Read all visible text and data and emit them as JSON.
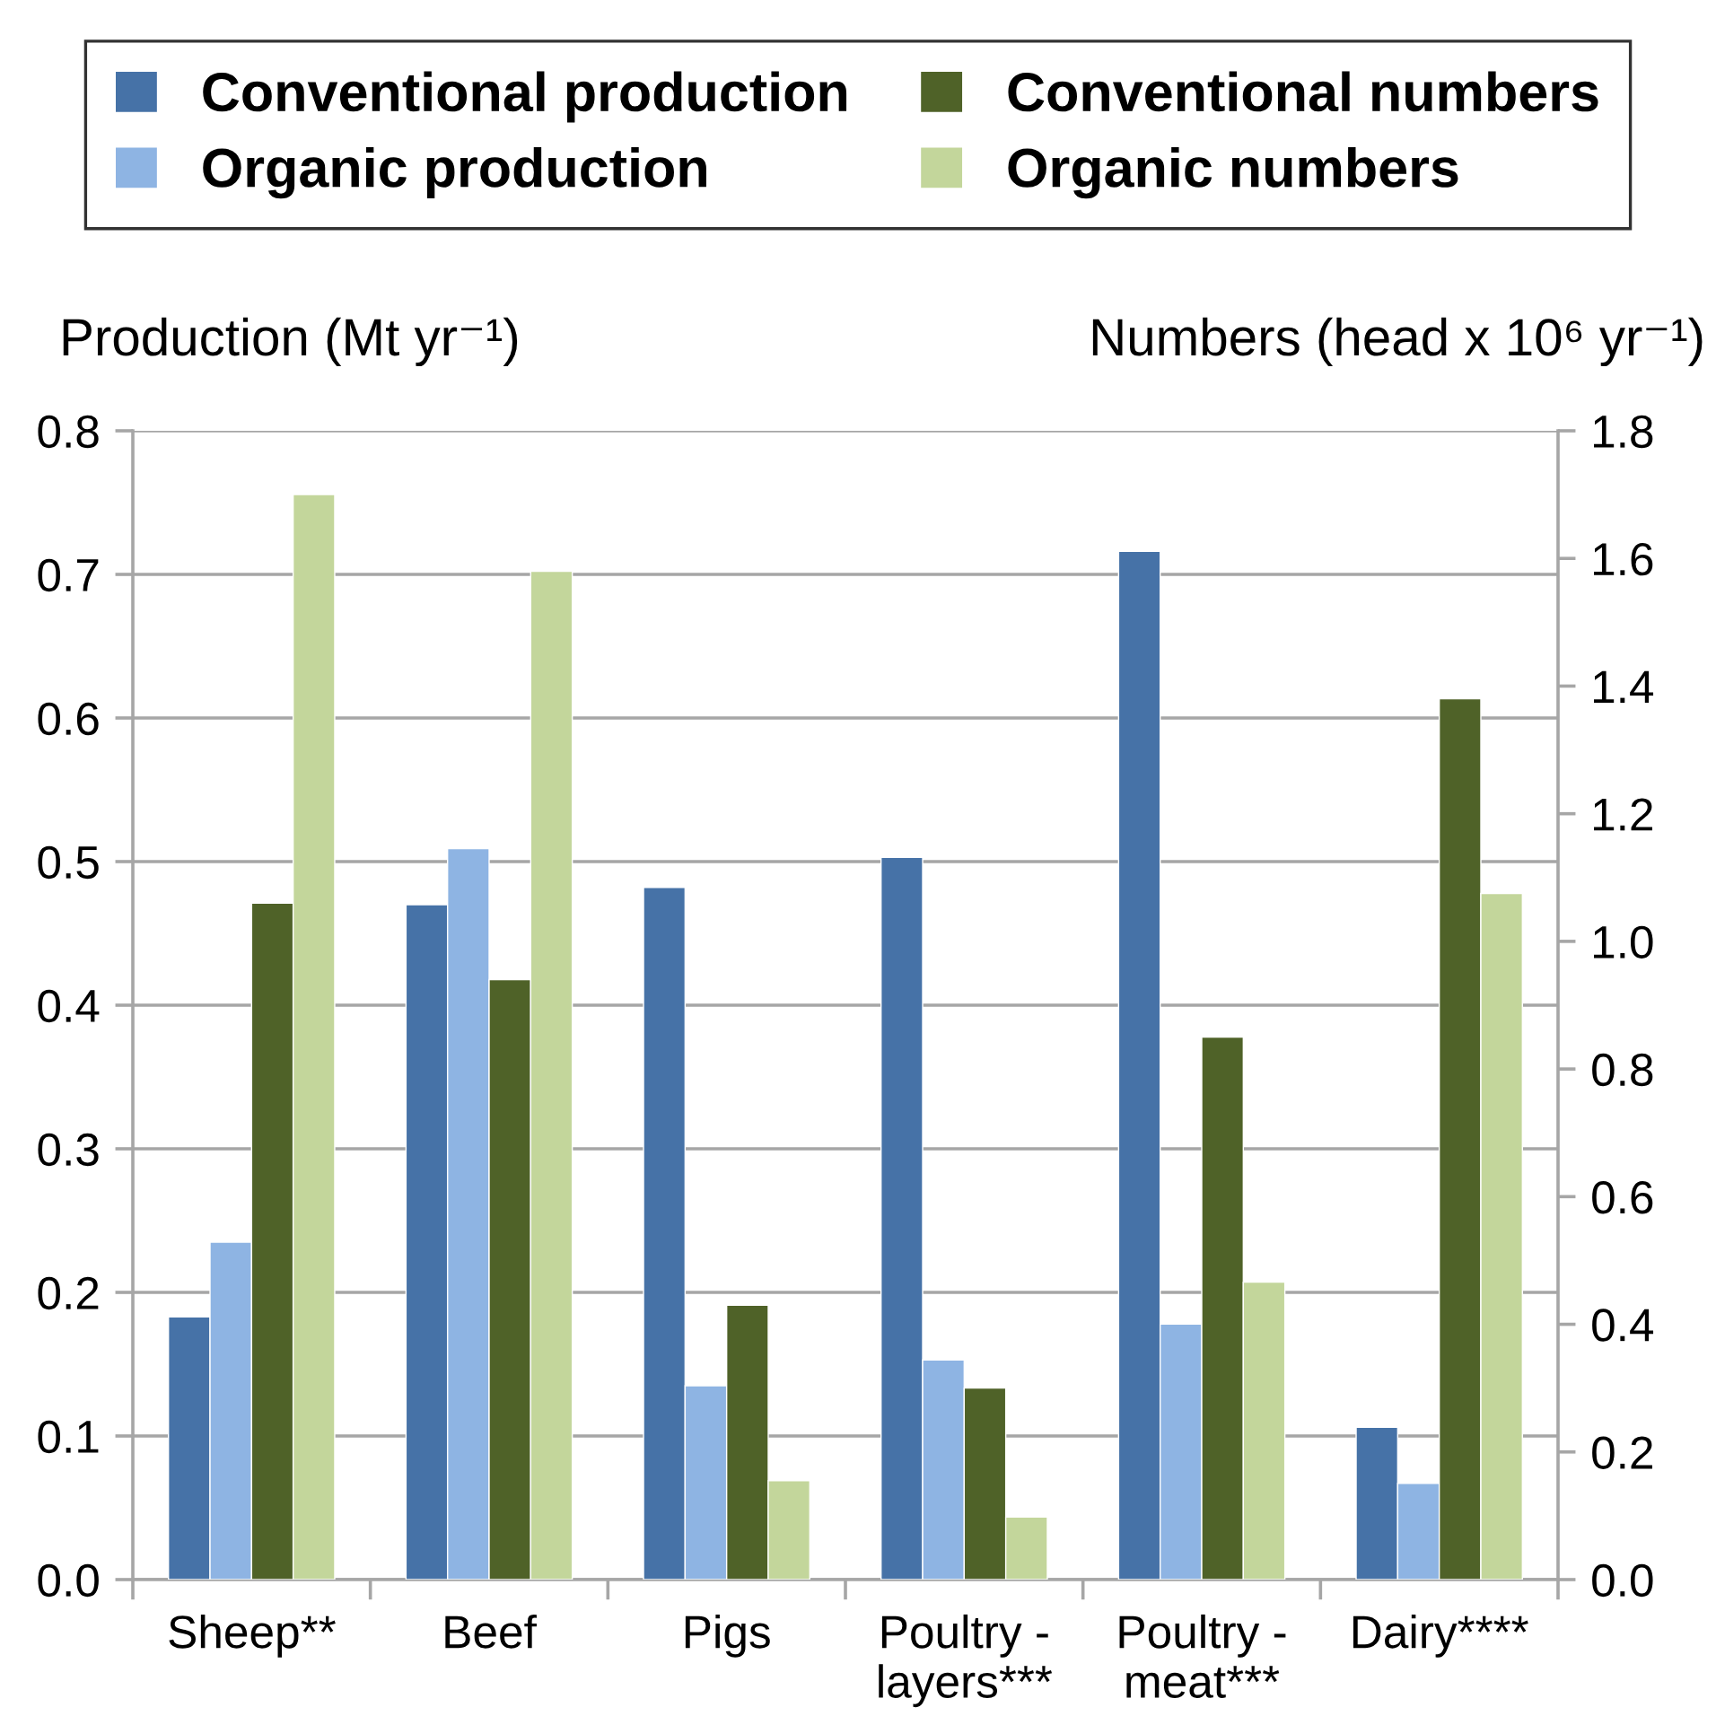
{
  "chart_data": {
    "type": "bar",
    "categories": [
      "Sheep**",
      "Beef",
      "Pigs",
      "Poultry -\nlayers***",
      "Poultry -\nmeat***",
      "Dairy****"
    ],
    "series": [
      {
        "name": "Conventional production",
        "color": "#4672a7",
        "values": [
          0.183,
          0.47,
          0.482,
          0.503,
          0.716,
          0.106
        ]
      },
      {
        "name": "Organic production",
        "color": "#8eb4e3",
        "values": [
          0.235,
          0.509,
          0.135,
          0.153,
          0.178,
          0.067
        ]
      },
      {
        "name": "Conventional numbers",
        "color": "#4f6228",
        "axis": "y2",
        "values": [
          1.06,
          0.94,
          0.43,
          0.3,
          0.85,
          1.38
        ]
      },
      {
        "name": "Organic numbers",
        "color": "#c3d69b",
        "axis": "y2",
        "values": [
          1.7,
          1.58,
          0.155,
          0.098,
          0.466,
          1.075
        ]
      }
    ],
    "ylabel": "Production (Mt yr⁻¹)",
    "y2label": "Numbers (head x 10⁶ yr⁻¹)",
    "ylim": [
      0,
      0.8
    ],
    "yticks": [
      {
        "value": 0,
        "label": "0.0"
      },
      0.1,
      0.2,
      0.3,
      0.4,
      0.5,
      0.6,
      0.7,
      0.8
    ],
    "y2lim": [
      0,
      1.8
    ],
    "y2ticks": [
      {
        "value": 0,
        "label": "0.0"
      },
      0.2,
      0.4,
      0.6,
      0.8,
      {
        "value": 1,
        "label": "1.0"
      },
      1.2,
      1.4,
      1.6,
      1.8
    ],
    "grid": "y",
    "legend": "top"
  }
}
